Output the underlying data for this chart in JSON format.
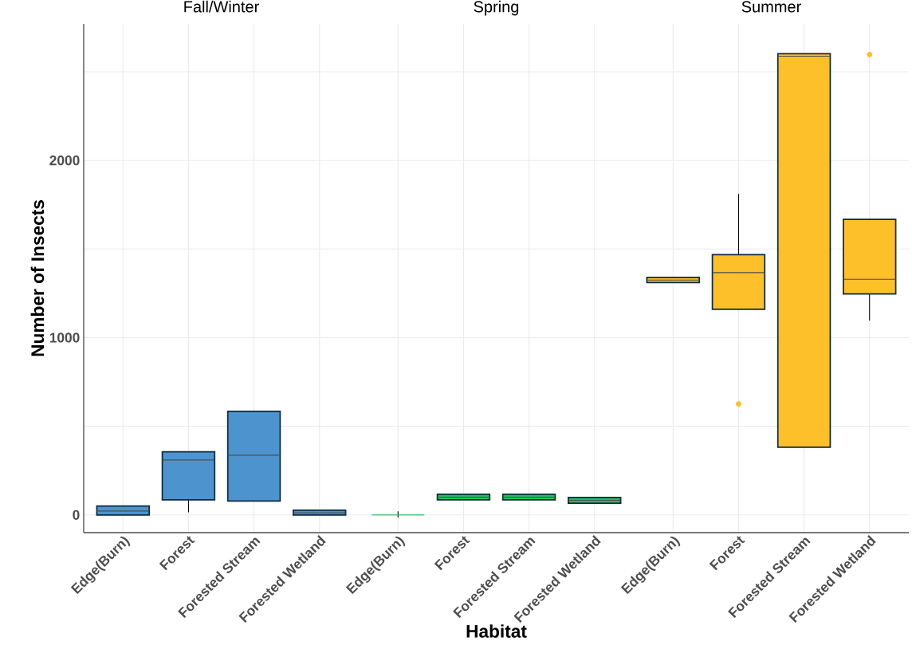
{
  "chart_data": [
    {
      "type": "box",
      "title": "Fall/Winter",
      "ylabel": "Number of Insects",
      "categories": [
        "Edge(Burn)",
        "Forest",
        "Forested Stream",
        "Forested Wetland"
      ],
      "ylim": [
        -100,
        2770
      ],
      "yticks": [
        0,
        {
          "value": 500,
          "label": null
        },
        1000,
        {
          "value": 1500,
          "label": null
        },
        2000,
        {
          "value": 2500,
          "label": null
        }
      ],
      "grid": true,
      "series": [
        {
          "color": "#4d94cf",
          "boxes": [
            {
              "low": 0,
              "q1": 0,
              "median": 22,
              "q3": 50,
              "high": 50
            },
            {
              "low": 15,
              "q1": 85,
              "median": 310,
              "q3": 356,
              "high": 356
            },
            {
              "low": 78,
              "q1": 78,
              "median": 337,
              "q3": 584,
              "high": 584
            },
            {
              "low": 0,
              "q1": 0,
              "median": 12,
              "q3": 27,
              "high": 27
            }
          ]
        }
      ]
    },
    {
      "type": "box",
      "title": "Spring",
      "xlabel": "Habitat",
      "categories": [
        "Edge(Burn)",
        "Forest",
        "Forested Stream",
        "Forested Wetland"
      ],
      "ylim": [
        -100,
        2770
      ],
      "yticks": [
        0,
        {
          "value": 500,
          "label": null
        },
        1000,
        {
          "value": 1500,
          "label": null
        },
        2000,
        {
          "value": 2500,
          "label": null
        }
      ],
      "grid": true,
      "tick_labels": "x",
      "series": [
        {
          "color": "#20c060",
          "boxes": [
            {
              "low": -15,
              "q1": 0,
              "median": 0,
              "q3": 0,
              "high": 20
            },
            {
              "low": 85,
              "q1": 85,
              "median": 100,
              "q3": 117,
              "high": 117
            },
            {
              "low": 85,
              "q1": 85,
              "median": 100,
              "q3": 117,
              "high": 117
            },
            {
              "low": 66,
              "q1": 66,
              "median": 82,
              "q3": 99,
              "high": 99
            }
          ]
        }
      ]
    },
    {
      "type": "box",
      "title": "Summer",
      "categories": [
        "Edge(Burn)",
        "Forest",
        "Forested Stream",
        "Forested Wetland"
      ],
      "ylim": [
        -100,
        2770
      ],
      "yticks": [
        0,
        {
          "value": 500,
          "label": null
        },
        1000,
        {
          "value": 1500,
          "label": null
        },
        2000,
        {
          "value": 2500,
          "label": null
        }
      ],
      "grid": true,
      "tick_labels": "x",
      "series": [
        {
          "color": "#fdbf2a",
          "boxes": [
            {
              "low": 1311,
              "q1": 1311,
              "median": 1325,
              "q3": 1340,
              "high": 1340
            },
            {
              "low": 1160,
              "q1": 1160,
              "median": 1367,
              "q3": 1468,
              "high": 1811,
              "outliers": [
                626
              ]
            },
            {
              "low": 382,
              "q1": 382,
              "median": 2588,
              "q3": 2602,
              "high": 2602
            },
            {
              "low": 1096,
              "q1": 1247,
              "median": 1329,
              "q3": 1667,
              "high": 1667,
              "outliers": [
                2597
              ]
            }
          ]
        }
      ]
    }
  ]
}
